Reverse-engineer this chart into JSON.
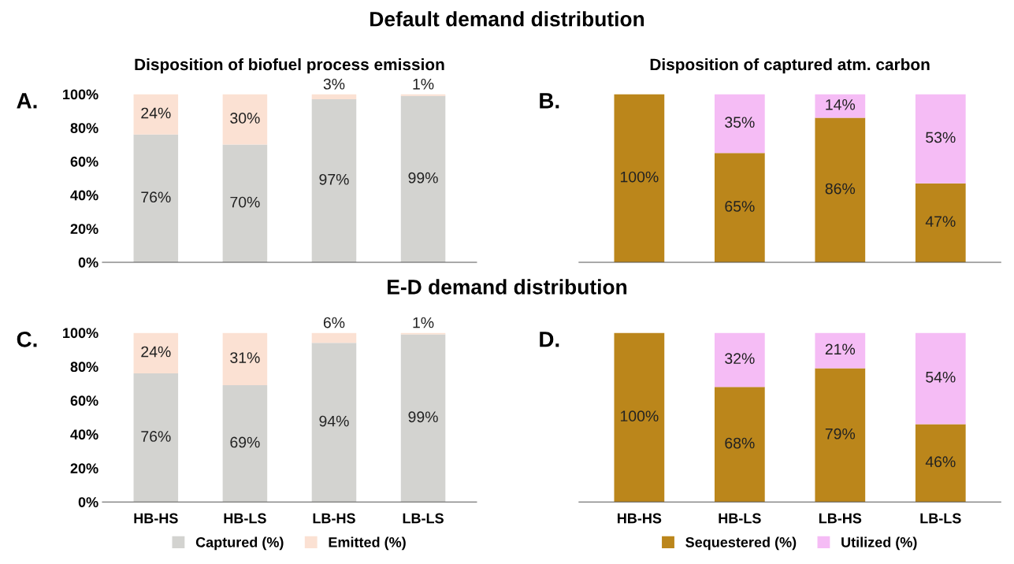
{
  "chart_data": [
    {
      "type": "bar",
      "stacked": true,
      "title": "Disposition of biofuel process emission",
      "annotations": [
        "Default demand distribution",
        "A."
      ],
      "categories": [
        null,
        null,
        null,
        null
      ],
      "tick_labels": "y",
      "ylim": [
        0,
        100
      ],
      "yticks": [
        {
          "value": 0,
          "label": "0%"
        },
        {
          "value": 20,
          "label": "20%"
        },
        {
          "value": 40,
          "label": "40%"
        },
        {
          "value": 60,
          "label": "60%"
        },
        {
          "value": 80,
          "label": "80%"
        },
        {
          "value": 100,
          "label": "100%"
        }
      ],
      "series": [
        {
          "color": "#d3d3d0",
          "values": [
            76,
            70,
            97,
            99
          ],
          "value_labels": [
            "76%",
            "70%",
            "97%",
            "99%"
          ]
        },
        {
          "color": "#fbe1d3",
          "values": [
            24,
            30,
            3,
            1
          ],
          "value_labels": [
            "24%",
            "30%",
            "3%",
            "1%"
          ]
        }
      ]
    },
    {
      "type": "bar",
      "stacked": true,
      "title": "Disposition of captured atm. carbon",
      "annotations": [
        "B."
      ],
      "categories": [
        null,
        null,
        null,
        null
      ],
      "tick_labels": false,
      "series": [
        {
          "color": "#bb861b",
          "values": [
            100,
            65,
            86,
            47
          ],
          "value_labels": [
            "100%",
            "65%",
            "86%",
            "47%"
          ]
        },
        {
          "color": "#f5bcf5",
          "values": [
            0,
            35,
            14,
            53
          ],
          "value_labels": [
            null,
            "35%",
            "14%",
            "53%"
          ]
        }
      ]
    },
    {
      "type": "bar",
      "stacked": true,
      "annotations": [
        "E-D demand distribution",
        "C."
      ],
      "categories": [
        "HB-HS",
        "HB-LS",
        "LB-HS",
        "LB-LS"
      ],
      "legend": "bottom",
      "ylim": [
        0,
        100
      ],
      "yticks": [
        {
          "value": 0,
          "label": "0%"
        },
        {
          "value": 20,
          "label": "20%"
        },
        {
          "value": 40,
          "label": "40%"
        },
        {
          "value": 60,
          "label": "60%"
        },
        {
          "value": 80,
          "label": "80%"
        },
        {
          "value": 100,
          "label": "100%"
        }
      ],
      "series": [
        {
          "name": "Captured (%)",
          "color": "#d3d3d0",
          "values": [
            76,
            69,
            94,
            99
          ],
          "value_labels": [
            "76%",
            "69%",
            "94%",
            "99%"
          ]
        },
        {
          "name": "Emitted (%)",
          "color": "#fbe1d3",
          "values": [
            24,
            31,
            6,
            1
          ],
          "value_labels": [
            "24%",
            "31%",
            "6%",
            "1%"
          ]
        }
      ]
    },
    {
      "type": "bar",
      "stacked": true,
      "annotations": [
        "D."
      ],
      "categories": [
        "HB-HS",
        "HB-LS",
        "LB-HS",
        "LB-LS"
      ],
      "tick_labels": "x",
      "legend": "bottom",
      "series": [
        {
          "name": "Sequestered (%)",
          "color": "#bb861b",
          "values": [
            100,
            68,
            79,
            46
          ],
          "value_labels": [
            "100%",
            "68%",
            "79%",
            "46%"
          ]
        },
        {
          "name": "Utilized (%)",
          "color": "#f5bcf5",
          "values": [
            0,
            32,
            21,
            54
          ],
          "value_labels": [
            null,
            "32%",
            "21%",
            "54%"
          ]
        }
      ]
    }
  ]
}
